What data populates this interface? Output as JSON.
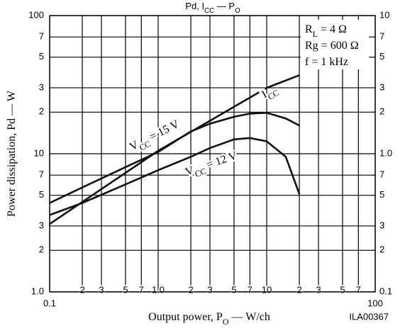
{
  "chart_data": {
    "type": "line",
    "title": [
      {
        "text": "Pd, I"
      },
      {
        "text": "CC",
        "sub": true
      },
      {
        "text": " — P"
      },
      {
        "text": "O",
        "sub": true
      }
    ],
    "x_label": [
      {
        "text": "Output power, P"
      },
      {
        "text": "O",
        "sub": true
      },
      {
        "text": " — W/ch"
      }
    ],
    "y_label": [
      {
        "text": "Power dissipation, Pd — W"
      }
    ],
    "figure_code": "ILA00367",
    "conditions": [
      [
        {
          "text": "R"
        },
        {
          "text": "L",
          "sub": true
        },
        {
          "text": " = 4 Ω"
        }
      ],
      [
        {
          "text": "Rg = 600 Ω"
        }
      ],
      [
        {
          "text": "f = 1 kHz"
        }
      ]
    ],
    "log_x": true,
    "log_y": true,
    "grid": true,
    "color": "#111111",
    "xlim": [
      0.1,
      100
    ],
    "xticks": [
      0.1,
      {
        "value": 0.2,
        "label": "2"
      },
      {
        "value": 0.3,
        "label": "3"
      },
      {
        "value": 0.5,
        "label": "5"
      },
      {
        "value": 0.7,
        "label": "7"
      },
      {
        "value": 1,
        "label": "1.0"
      },
      2,
      3,
      5,
      7,
      10,
      {
        "value": 20,
        "label": "2"
      },
      {
        "value": 30,
        "label": "3"
      },
      {
        "value": 50,
        "label": "5"
      },
      {
        "value": 70,
        "label": "7"
      },
      100
    ],
    "ylim": [
      1,
      100
    ],
    "yticks": [
      {
        "value": 1,
        "label": "1.0"
      },
      2,
      3,
      5,
      7,
      10,
      {
        "value": 20,
        "label": "2"
      },
      {
        "value": 30,
        "label": "3"
      },
      {
        "value": 50,
        "label": "5"
      },
      {
        "value": 70,
        "label": "7"
      },
      100
    ],
    "y2lim": [
      0.1,
      10
    ],
    "y2ticks": [
      0.1,
      {
        "value": 0.2,
        "label": "2"
      },
      {
        "value": 0.3,
        "label": "3"
      },
      {
        "value": 0.5,
        "label": "5"
      },
      {
        "value": 0.7,
        "label": "7"
      },
      {
        "value": 1,
        "label": "1.0"
      },
      2,
      3,
      5,
      7,
      10
    ],
    "series": [
      {
        "label": [
          {
            "text": "I"
          },
          {
            "text": "CC",
            "sub": true
          }
        ],
        "axis": "y2",
        "x": [
          0.1,
          1,
          10,
          20
        ],
        "values": [
          0.31,
          1.05,
          3.0,
          3.7
        ]
      },
      {
        "label": [
          {
            "text": "V"
          },
          {
            "text": "CC",
            "sub": true
          },
          {
            "text": " = 15 V"
          }
        ],
        "x": [
          0.1,
          0.2,
          0.5,
          1,
          2,
          3,
          5,
          7,
          10,
          15,
          20
        ],
        "values": [
          4.4,
          5.7,
          8.0,
          10.3,
          14.5,
          16.5,
          18.5,
          19.5,
          19.8,
          18,
          16
        ]
      },
      {
        "label": [
          {
            "text": "V"
          },
          {
            "text": "CC",
            "sub": true
          },
          {
            "text": " = 12 V"
          }
        ],
        "x": [
          0.1,
          0.2,
          0.5,
          1,
          2,
          3,
          5,
          7,
          10,
          15,
          20
        ],
        "values": [
          3.6,
          4.4,
          6.0,
          7.6,
          9.5,
          11,
          12.7,
          13,
          12.3,
          9.5,
          5.1
        ]
      }
    ]
  }
}
